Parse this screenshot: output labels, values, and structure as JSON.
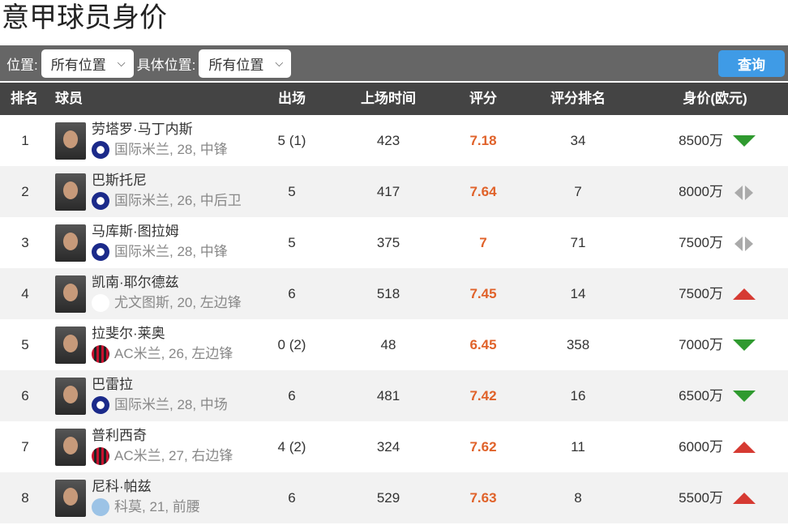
{
  "title": "意甲球员身价",
  "filters": {
    "position_label": "位置:",
    "position_value": "所有位置",
    "detail_label": "具体位置:",
    "detail_value": "所有位置",
    "query_button": "查询"
  },
  "headers": [
    "排名",
    "球员",
    "出场",
    "上场时间",
    "评分",
    "评分排名",
    "身价(欧元)"
  ],
  "colors": {
    "rating": "#e0622a",
    "up": "#d63a32",
    "down": "#2f9a2f",
    "flat": "#aaaaaa",
    "query": "#3f9be6"
  },
  "rows": [
    {
      "rank": "1",
      "name": "劳塔罗·马丁内斯",
      "club": "国际米兰",
      "info": "国际米兰, 28, 中锋",
      "apps": "5 (1)",
      "minutes": "423",
      "rating": "7.18",
      "rating_rank": "34",
      "value": "8500万",
      "trend": "down"
    },
    {
      "rank": "2",
      "name": "巴斯托尼",
      "club": "国际米兰",
      "info": "国际米兰, 26, 中后卫",
      "apps": "5",
      "minutes": "417",
      "rating": "7.64",
      "rating_rank": "7",
      "value": "8000万",
      "trend": "flat"
    },
    {
      "rank": "3",
      "name": "马库斯·图拉姆",
      "club": "国际米兰",
      "info": "国际米兰, 28, 中锋",
      "apps": "5",
      "minutes": "375",
      "rating": "7",
      "rating_rank": "71",
      "value": "7500万",
      "trend": "flat"
    },
    {
      "rank": "4",
      "name": "凯南·耶尔德兹",
      "club": "尤文图斯",
      "info": "尤文图斯, 20, 左边锋",
      "apps": "6",
      "minutes": "518",
      "rating": "7.45",
      "rating_rank": "14",
      "value": "7500万",
      "trend": "up"
    },
    {
      "rank": "5",
      "name": "拉斐尔·莱奥",
      "club": "AC米兰",
      "info": "AC米兰, 26, 左边锋",
      "apps": "0 (2)",
      "minutes": "48",
      "rating": "6.45",
      "rating_rank": "358",
      "value": "7000万",
      "trend": "down"
    },
    {
      "rank": "6",
      "name": "巴雷拉",
      "club": "国际米兰",
      "info": "国际米兰, 28, 中场",
      "apps": "6",
      "minutes": "481",
      "rating": "7.42",
      "rating_rank": "16",
      "value": "6500万",
      "trend": "down"
    },
    {
      "rank": "7",
      "name": "普利西奇",
      "club": "AC米兰",
      "info": "AC米兰, 27, 右边锋",
      "apps": "4 (2)",
      "minutes": "324",
      "rating": "7.62",
      "rating_rank": "11",
      "value": "6000万",
      "trend": "up"
    },
    {
      "rank": "8",
      "name": "尼科·帕兹",
      "club": "科莫",
      "info": "科莫, 21, 前腰",
      "apps": "6",
      "minutes": "529",
      "rating": "7.63",
      "rating_rank": "8",
      "value": "5500万",
      "trend": "up"
    }
  ]
}
